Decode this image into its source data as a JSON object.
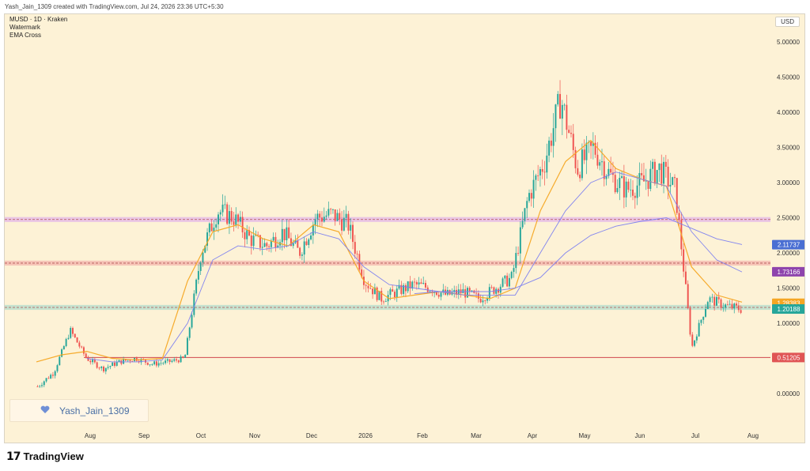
{
  "header": {
    "caption": "Yash_Jain_1309 created with TradingView.com, Jul 24, 2026 23:36 UTC+5:30"
  },
  "legend": {
    "symbol": "MUSD · 1D · Kraken",
    "indicator1": "Watermark",
    "indicator2": "EMA Cross"
  },
  "currency": "USD",
  "watermark_text": "Yash_Jain_1309",
  "footer_brand": "TradingView",
  "colors": {
    "background": "#fdf2d6",
    "up": "#26a69a",
    "down": "#ef5350",
    "ema_fast": "#f5a623",
    "ema_slow": "#7b7ef0",
    "zone_pink": "#e3b6e8",
    "zone_red": "#f3b6ae",
    "zone_green": "#b3dccc",
    "support_line": "#d0464e"
  },
  "price_tags": [
    {
      "value": "2.11737",
      "color": "#4a6fd3"
    },
    {
      "value": "1.73166",
      "color": "#8e44ad"
    },
    {
      "value": "1.28383",
      "color": "#f5a623"
    },
    {
      "value": "1.20188",
      "color": "#26a69a"
    },
    {
      "value": "0.51205",
      "color": "#e05555"
    }
  ],
  "chart_data": {
    "type": "candlestick",
    "title": "MUSD · 1D · Kraken",
    "y_ticks": [
      "5.00000",
      "4.50000",
      "4.00000",
      "3.50000",
      "3.00000",
      "2.50000",
      "2.00000",
      "1.50000",
      "1.00000",
      "0.00000"
    ],
    "x_ticks": [
      "Aug",
      "Sep",
      "Oct",
      "Nov",
      "Dec",
      "2026",
      "Feb",
      "Mar",
      "Apr",
      "May",
      "Jun",
      "Jul",
      "Aug"
    ],
    "ylim": [
      -0.45,
      5.35
    ],
    "zones": [
      {
        "low": 2.44,
        "high": 2.51,
        "color": "#e3b6e8"
      },
      {
        "low": 1.82,
        "high": 1.89,
        "color": "#f3b6ae"
      },
      {
        "low": 1.19,
        "high": 1.26,
        "color": "#b3dccc"
      }
    ],
    "support_level": 0.51205,
    "series": [
      {
        "name": "EMA fast",
        "values": [
          0.45,
          0.55,
          0.6,
          0.5,
          0.48,
          0.5,
          1.6,
          2.3,
          2.4,
          2.2,
          2.1,
          2.4,
          2.3,
          1.6,
          1.35,
          1.4,
          1.45,
          1.4,
          1.35,
          1.5,
          2.6,
          3.3,
          3.6,
          3.2,
          3.05,
          2.95,
          1.8,
          1.4,
          1.3
        ]
      },
      {
        "name": "EMA slow",
        "values": [
          null,
          null,
          0.5,
          0.45,
          0.45,
          0.48,
          1.0,
          1.9,
          2.1,
          2.05,
          2.1,
          2.3,
          2.2,
          1.8,
          1.55,
          1.5,
          1.45,
          1.4,
          1.4,
          1.4,
          2.0,
          2.6,
          3.0,
          3.15,
          3.05,
          2.95,
          2.3,
          1.9,
          1.73
        ]
      },
      {
        "name": "EMA long",
        "values": [
          null,
          null,
          null,
          null,
          null,
          null,
          null,
          null,
          null,
          null,
          null,
          null,
          null,
          null,
          null,
          1.42,
          1.45,
          1.45,
          1.45,
          1.5,
          1.65,
          2.0,
          2.25,
          2.38,
          2.45,
          2.5,
          2.35,
          2.2,
          2.12
        ]
      }
    ],
    "candles_close": [
      0.1,
      0.3,
      0.9,
      0.5,
      0.35,
      0.45,
      0.5,
      0.42,
      0.45,
      0.5,
      2.0,
      2.6,
      2.5,
      2.2,
      2.1,
      2.3,
      2.0,
      2.5,
      2.55,
      2.4,
      1.6,
      1.35,
      1.45,
      1.55,
      1.5,
      1.4,
      1.45,
      1.35,
      1.5,
      1.65,
      2.8,
      3.3,
      4.2,
      3.2,
      3.5,
      3.1,
      2.9,
      3.0,
      3.2,
      2.9,
      0.65,
      1.35,
      1.25,
      1.2
    ]
  }
}
